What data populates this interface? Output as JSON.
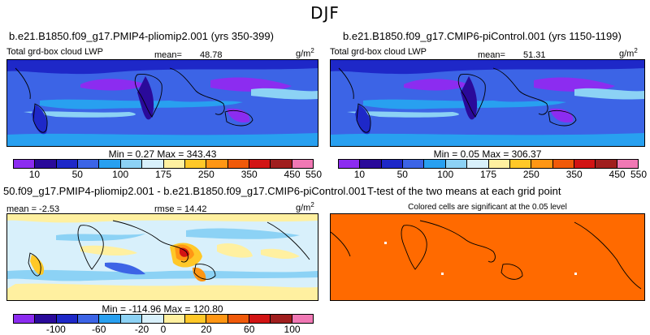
{
  "season": "DJF",
  "panels": {
    "top_left": {
      "title": "b.e21.B1850.f09_g17.PMIP4-pliomip2.001 (yrs 350-399)",
      "variable": "Total grd-box cloud LWP",
      "mean_label": "mean=",
      "mean_value": "48.78",
      "units": "g/m",
      "units_sup": "2",
      "min_max": "Min =    0.27  Max = 343.43"
    },
    "top_right": {
      "title": "b.e21.B1850.f09_g17.CMIP6-piControl.001 (yrs 1150-1199)",
      "variable": "Total grd-box cloud LWP",
      "mean_label": "mean=",
      "mean_value": "51.31",
      "units": "g/m",
      "units_sup": "2",
      "min_max": "Min =    0.05  Max = 306.37"
    },
    "bottom_left": {
      "title": "50.f09_g17.PMIP4-pliomip2.001 - b.e21.B1850.f09_g17.CMIP6-piControl.001",
      "mean_text": "mean =   -2.53",
      "rmse_text": "rmse =  14.42",
      "units": "g/m",
      "units_sup": "2",
      "min_max": "Min = -114.96  Max = 120.80"
    },
    "bottom_right": {
      "title": "T-test of the two means at each grid point",
      "subtitle": "Colored cells are significant at the 0.05 level"
    }
  },
  "colorbar_abs": {
    "colors": [
      "#8c2cf0",
      "#2a0a9a",
      "#1e28c8",
      "#3c64e6",
      "#28a0f0",
      "#8cd2f5",
      "#d8f0fb",
      "#fff0a0",
      "#ffc828",
      "#ff9614",
      "#f05a0a",
      "#d21414",
      "#a01e1e",
      "#f078b4"
    ],
    "ticks": [
      "10",
      "50",
      "100",
      "175",
      "250",
      "350",
      "450",
      "550"
    ]
  },
  "colorbar_diff": {
    "colors": [
      "#8c2cf0",
      "#2a0a9a",
      "#1e28c8",
      "#3c64e6",
      "#28a0f0",
      "#8cd2f5",
      "#d8f0fb",
      "#fff0a0",
      "#ffc828",
      "#ff9614",
      "#f05a0a",
      "#d21414",
      "#a01e1e",
      "#f078b4"
    ],
    "ticks": [
      "-100",
      "-60",
      "-20",
      "0",
      "20",
      "60",
      "100"
    ]
  },
  "colors": {
    "lwp_low": "#3c64e6",
    "lwp_mid": "#28a0f0",
    "lwp_high": "#8cd2f5",
    "lwp_vlow": "#8c2cf0",
    "diff_bg": "#d8f0fb",
    "diff_pos": "#ffc828",
    "diff_strong": "#d21414",
    "ttest": "#ff6a00"
  }
}
